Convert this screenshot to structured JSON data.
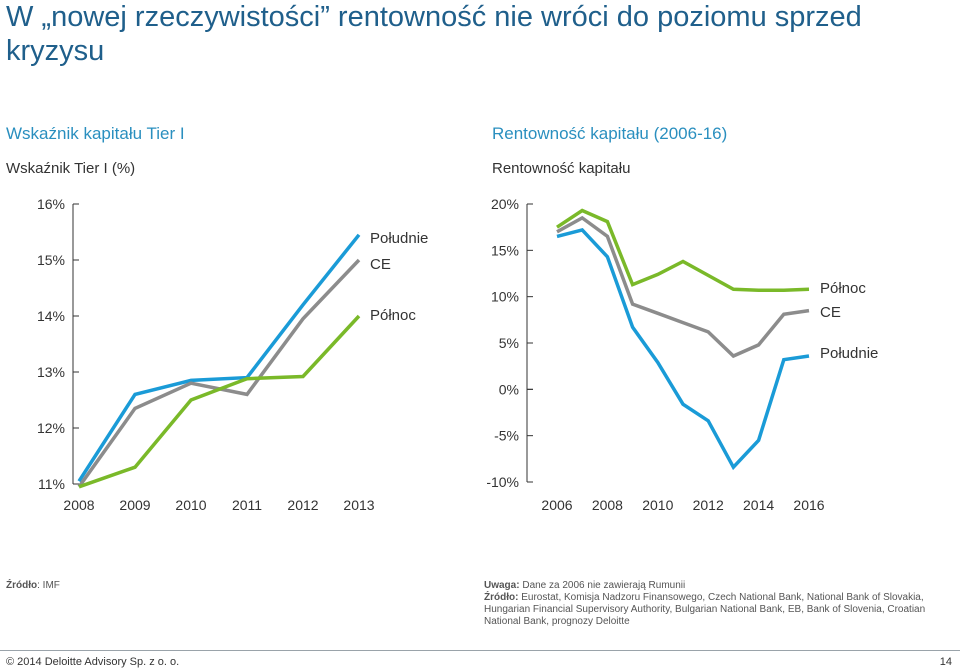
{
  "title": "W „nowej rzeczywistości” rentowność nie wróci do poziomu sprzed kryzysu",
  "left": {
    "heading": "Wskaźnik kapitału Tier I",
    "subheading": "Wskaźnik Tier I (%)",
    "source_label": "Źródło",
    "source_text": ": IMF"
  },
  "right": {
    "heading": "Rentowność kapitału (2006-16)",
    "subheading": "Rentowność kapitału",
    "note_label": "Uwaga:",
    "note_text": " Dane za 2006 nie zawierają Rumunii",
    "source_label": "Źródło:",
    "source_text": " Eurostat, Komisja Nadzoru Finansowego, Czech National Bank, National Bank of Slovakia, Hungarian Financial Supervisory Authority, Bulgarian National Bank, EB, Bank of Slovenia, Croatian National Bank, prognozy Deloitte"
  },
  "footer": "© 2014 Deloitte Advisory Sp. z o. o.",
  "page_number": "14",
  "colors": {
    "blue": "#1a9bd7",
    "grey": "#8c8c8c",
    "green": "#7ab929"
  },
  "chart_data": [
    {
      "type": "line",
      "x": [
        2008,
        2009,
        2010,
        2011,
        2012,
        2013
      ],
      "tick_labels": [
        "2008",
        "2009",
        "2010",
        "2011",
        "2012",
        "2013"
      ],
      "y_tick_labels": [
        "16%",
        "15%",
        "14%",
        "13%",
        "12%",
        "11%"
      ],
      "ylim": [
        11,
        16
      ],
      "series": [
        {
          "name": "Południe",
          "color": "#1a9bd7",
          "values": [
            11.05,
            12.6,
            12.85,
            12.9,
            14.2,
            15.45
          ]
        },
        {
          "name": "CE",
          "color": "#8c8c8c",
          "values": [
            10.95,
            12.35,
            12.8,
            12.6,
            13.95,
            15.0
          ]
        },
        {
          "name": "Północ",
          "color": "#7ab929",
          "values": [
            10.95,
            11.3,
            12.5,
            12.88,
            12.92,
            14.0
          ]
        }
      ],
      "legend": [
        "Południe",
        "CE",
        "Północ"
      ]
    },
    {
      "type": "line",
      "x": [
        2006,
        2007,
        2008,
        2009,
        2010,
        2011,
        2012,
        2013,
        2014,
        2015,
        2016
      ],
      "tick_labels": [
        "2006",
        "2008",
        "2010",
        "2012",
        "2014",
        "2016"
      ],
      "y_tick_labels": [
        "20%",
        "15%",
        "10%",
        "5%",
        "0%",
        "-5%",
        "-10%"
      ],
      "ylim": [
        -10,
        20
      ],
      "series": [
        {
          "name": "Północ",
          "color": "#7ab929",
          "values": [
            17.5,
            19.3,
            18.1,
            11.3,
            12.4,
            13.8,
            12.3,
            10.8,
            10.7,
            10.7,
            10.8
          ]
        },
        {
          "name": "CE",
          "color": "#8c8c8c",
          "values": [
            17.0,
            18.5,
            16.5,
            9.2,
            8.2,
            7.2,
            6.2,
            3.6,
            4.8,
            8.1,
            8.5
          ]
        },
        {
          "name": "Południe",
          "color": "#1a9bd7",
          "values": [
            16.5,
            17.2,
            14.3,
            6.7,
            2.9,
            -1.6,
            -3.4,
            -8.4,
            -5.5,
            3.2,
            3.6
          ]
        }
      ],
      "legend": [
        "Północ",
        "CE",
        "Południe"
      ]
    }
  ]
}
